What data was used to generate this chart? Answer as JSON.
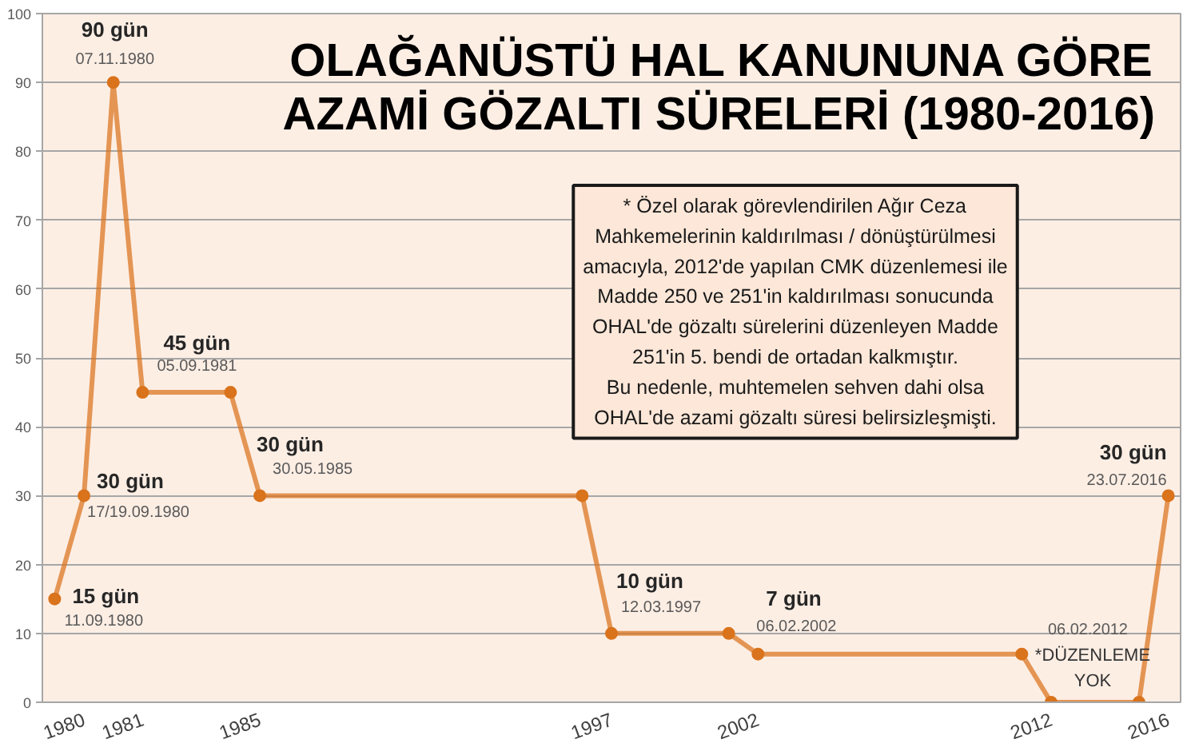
{
  "chart_data": {
    "type": "line",
    "title": "OLAĞANÜSTÜ HAL KANUNUNA GÖRE\nAZAMİ GÖZALTI SÜRELERİ (1980-2016)",
    "categories": [
      null,
      "1980",
      null,
      "1981",
      null,
      null,
      null,
      "1985",
      null,
      null,
      null,
      null,
      null,
      null,
      null,
      null,
      null,
      null,
      null,
      "1997",
      null,
      null,
      null,
      null,
      "2002",
      null,
      null,
      null,
      null,
      null,
      null,
      null,
      null,
      null,
      "2012",
      null,
      null,
      null,
      "2016"
    ],
    "values": [
      15,
      30,
      90,
      45,
      null,
      null,
      45,
      30,
      null,
      null,
      null,
      null,
      null,
      null,
      null,
      null,
      null,
      null,
      30,
      10,
      null,
      null,
      null,
      10,
      7,
      null,
      null,
      null,
      null,
      null,
      null,
      null,
      null,
      7,
      0,
      null,
      null,
      0,
      30
    ],
    "value_labels": [
      "15 gün\n11.09.1980",
      "30 gün\n17/19.09.1980",
      "90 gün\n07.11.1980",
      "45 gün\n05.09.1981",
      null,
      null,
      null,
      "30 gün\n30.05.1985",
      null,
      null,
      null,
      null,
      null,
      null,
      null,
      null,
      null,
      null,
      null,
      "10 gün\n12.03.1997",
      null,
      null,
      null,
      null,
      "7 gün\n06.02.2002",
      null,
      null,
      null,
      null,
      null,
      null,
      null,
      null,
      null,
      "06.02.2012\n*DÜZENLEME\nYOK",
      null,
      null,
      null,
      "30 gün\n23.07.2016"
    ],
    "color": "#d9731c",
    "marker": "circle",
    "line_style": "solid",
    "grid": "y",
    "ylim": [
      0,
      100
    ],
    "yticks": [
      0,
      10,
      20,
      30,
      40,
      50,
      60,
      70,
      80,
      90,
      100
    ],
    "annotations": [
      "* Özel olarak görevlendirilen Ağır Ceza\nMahkemelerinin kaldırılması / dönüştürülmesi\namacıyla, 2012'de yapılan CMK düzenlemesi ile\nMadde 250 ve 251'in kaldırılması sonucunda\nOHAL'de gözaltı sürelerini düzenleyen Madde\n251'in 5. bendi de ortadan kalkmıştır.\nBu nedenle, muhtemelen sehven dahi olsa\nOHAL'de azami gözaltı süresi belirsizleşmişti."
    ]
  }
}
